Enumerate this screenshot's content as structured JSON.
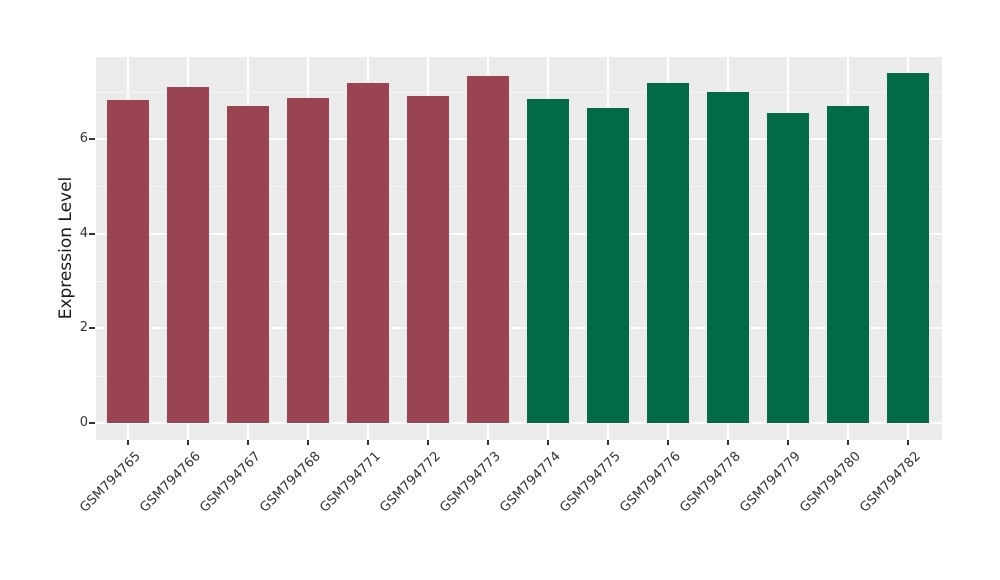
{
  "figure": {
    "background": "#FFFFFF"
  },
  "chart_data": {
    "type": "bar",
    "title": "",
    "ylabel": "Expression Level",
    "xlabel": "",
    "categories": [
      "GSM794765",
      "GSM794766",
      "GSM794767",
      "GSM794768",
      "GSM794771",
      "GSM794772",
      "GSM794773",
      "GSM794774",
      "GSM794775",
      "GSM794776",
      "GSM794778",
      "GSM794779",
      "GSM794780",
      "GSM794782"
    ],
    "values": [
      6.83,
      7.1,
      6.7,
      6.86,
      7.18,
      6.91,
      7.33,
      6.85,
      6.66,
      7.19,
      7.0,
      6.55,
      6.7,
      7.39
    ],
    "bar_groups": [
      "maroon",
      "maroon",
      "maroon",
      "maroon",
      "maroon",
      "maroon",
      "maroon",
      "green",
      "green",
      "green",
      "green",
      "green",
      "green",
      "green"
    ],
    "group_colors": {
      "maroon": "#9B4451",
      "green": "#026949"
    },
    "ylim": [
      0,
      7.74
    ],
    "yticks": [
      0,
      2,
      4,
      6
    ],
    "yticks_minor": [
      1,
      3,
      5,
      7
    ],
    "x_tick_rotation_deg": 45,
    "grid": "on",
    "legend_position": "none",
    "panel_background": "#EBEBEB",
    "gridline_color": "#FFFFFF",
    "axis_text_color": "#333333",
    "tick_mark_color": "#333333",
    "bar_width_fraction": 0.7
  }
}
